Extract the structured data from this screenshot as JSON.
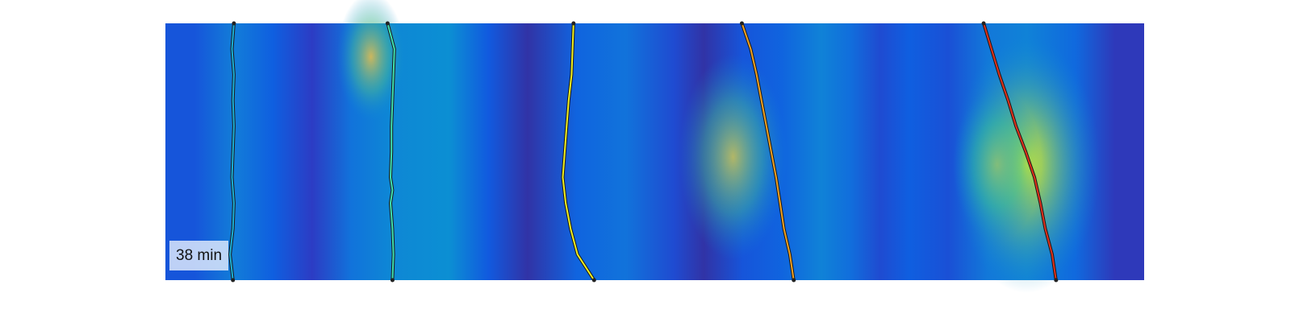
{
  "chart_data": {
    "type": "heatmap",
    "title": "",
    "xlabel": "",
    "ylabel": "",
    "grid": false,
    "colormap": "parula",
    "time_label": "38 min",
    "y_range": [
      0,
      1
    ],
    "x_range": [
      0,
      1
    ],
    "background_bands": [
      {
        "x": 0.03,
        "value": 0.22
      },
      {
        "x": 0.07,
        "value": 0.38
      },
      {
        "x": 0.11,
        "value": 0.26
      },
      {
        "x": 0.15,
        "value": 0.12
      },
      {
        "x": 0.19,
        "value": 0.34
      },
      {
        "x": 0.23,
        "value": 0.42
      },
      {
        "x": 0.29,
        "value": 0.45
      },
      {
        "x": 0.33,
        "value": 0.24
      },
      {
        "x": 0.37,
        "value": 0.06
      },
      {
        "x": 0.42,
        "value": 0.28
      },
      {
        "x": 0.47,
        "value": 0.34
      },
      {
        "x": 0.52,
        "value": 0.18
      },
      {
        "x": 0.55,
        "value": 0.06
      },
      {
        "x": 0.59,
        "value": 0.22
      },
      {
        "x": 0.63,
        "value": 0.28
      },
      {
        "x": 0.67,
        "value": 0.4
      },
      {
        "x": 0.7,
        "value": 0.32
      },
      {
        "x": 0.73,
        "value": 0.18
      },
      {
        "x": 0.76,
        "value": 0.26
      },
      {
        "x": 0.8,
        "value": 0.2
      },
      {
        "x": 0.84,
        "value": 0.36
      },
      {
        "x": 0.88,
        "value": 0.4
      },
      {
        "x": 0.93,
        "value": 0.3
      },
      {
        "x": 0.97,
        "value": 0.1
      }
    ],
    "hotspots": [
      {
        "x": 0.21,
        "y": 0.13,
        "rx": 0.035,
        "ry": 0.25,
        "value": 0.5
      },
      {
        "x": 0.58,
        "y": 0.52,
        "rx": 0.055,
        "ry": 0.4,
        "value": 0.45
      },
      {
        "x": 0.88,
        "y": 0.55,
        "rx": 0.075,
        "ry": 0.5,
        "value": 0.6
      },
      {
        "x": 0.85,
        "y": 0.55,
        "rx": 0.045,
        "ry": 0.3,
        "value": 0.35
      }
    ],
    "series": [
      {
        "color": "#1ab0d8",
        "points": [
          [
            0.07,
            1.0
          ],
          [
            0.068,
            0.9
          ],
          [
            0.07,
            0.8
          ],
          [
            0.069,
            0.7
          ],
          [
            0.07,
            0.6
          ],
          [
            0.069,
            0.5
          ],
          [
            0.068,
            0.4
          ],
          [
            0.07,
            0.3
          ],
          [
            0.069,
            0.2
          ],
          [
            0.066,
            0.1
          ],
          [
            0.069,
            0.0
          ]
        ]
      },
      {
        "color": "#3ee0b0",
        "points": [
          [
            0.227,
            1.0
          ],
          [
            0.234,
            0.9
          ],
          [
            0.233,
            0.8
          ],
          [
            0.232,
            0.7
          ],
          [
            0.231,
            0.6
          ],
          [
            0.231,
            0.5
          ],
          [
            0.23,
            0.4
          ],
          [
            0.232,
            0.35
          ],
          [
            0.23,
            0.3
          ],
          [
            0.232,
            0.2
          ],
          [
            0.233,
            0.1
          ],
          [
            0.232,
            0.0
          ]
        ]
      },
      {
        "color": "#f0f020",
        "points": [
          [
            0.417,
            1.0
          ],
          [
            0.416,
            0.9
          ],
          [
            0.415,
            0.8
          ],
          [
            0.412,
            0.7
          ],
          [
            0.41,
            0.6
          ],
          [
            0.408,
            0.5
          ],
          [
            0.406,
            0.4
          ],
          [
            0.409,
            0.3
          ],
          [
            0.414,
            0.2
          ],
          [
            0.421,
            0.1
          ],
          [
            0.438,
            0.0
          ]
        ]
      },
      {
        "color": "#f0a020",
        "points": [
          [
            0.589,
            1.0
          ],
          [
            0.598,
            0.9
          ],
          [
            0.604,
            0.8
          ],
          [
            0.609,
            0.7
          ],
          [
            0.614,
            0.6
          ],
          [
            0.619,
            0.5
          ],
          [
            0.624,
            0.4
          ],
          [
            0.628,
            0.3
          ],
          [
            0.632,
            0.2
          ],
          [
            0.638,
            0.1
          ],
          [
            0.642,
            0.0
          ]
        ]
      },
      {
        "color": "#e0301a",
        "points": [
          [
            0.836,
            1.0
          ],
          [
            0.844,
            0.9
          ],
          [
            0.852,
            0.8
          ],
          [
            0.861,
            0.7
          ],
          [
            0.869,
            0.6
          ],
          [
            0.879,
            0.5
          ],
          [
            0.888,
            0.4
          ],
          [
            0.894,
            0.3
          ],
          [
            0.899,
            0.2
          ],
          [
            0.906,
            0.1
          ],
          [
            0.91,
            0.0
          ]
        ]
      }
    ]
  }
}
